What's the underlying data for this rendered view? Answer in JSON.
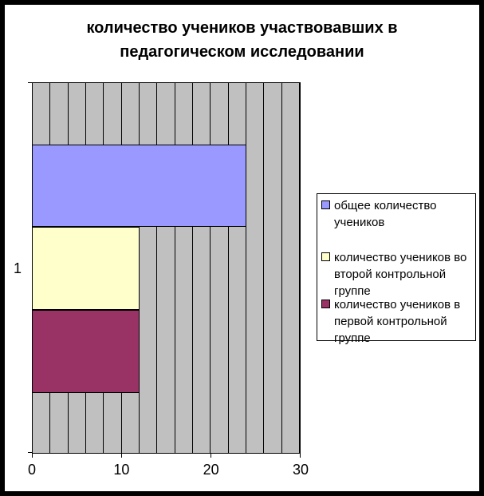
{
  "title": "количество учеников участвовавших в педагогическом исследовании",
  "chart_data": {
    "type": "bar",
    "orientation": "horizontal",
    "title": "количество учеников участвовавших в педагогическом исследовании",
    "categories": [
      "1"
    ],
    "series": [
      {
        "name": "общее количество учеников",
        "values": [
          24
        ],
        "color": "#9999FF"
      },
      {
        "name": "количество учеников во второй контрольной группе",
        "values": [
          12
        ],
        "color": "#FFFFCC"
      },
      {
        "name": "количество учеников в первой контрольной группе",
        "values": [
          12
        ],
        "color": "#993366"
      }
    ],
    "xlim": [
      0,
      30
    ],
    "x_tick_labels": [
      "0",
      "10",
      "20",
      "30"
    ],
    "gridline_interval": 2,
    "grid": true,
    "plot_background_color": "#C0C0C0",
    "gridline_color": "#000000",
    "legend_position": "right"
  }
}
